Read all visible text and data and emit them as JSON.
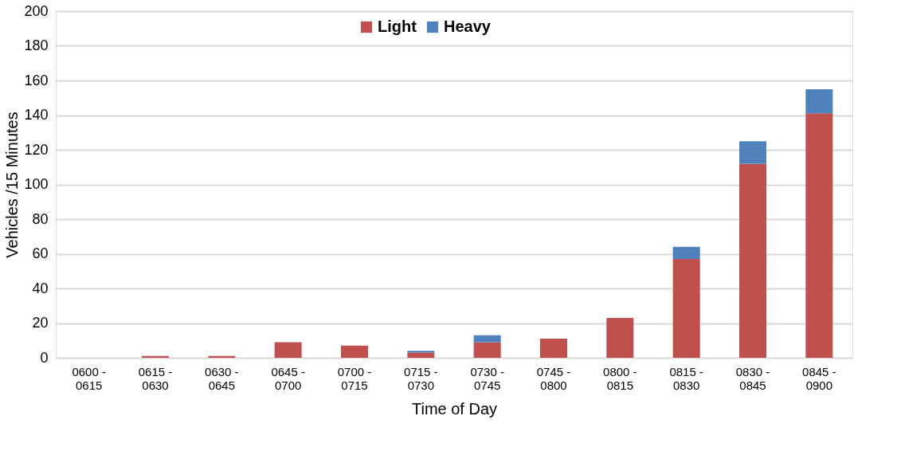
{
  "chart_data": {
    "type": "bar",
    "stacked": true,
    "xlabel": "Time of Day",
    "ylabel": "Vehicles /15 Minutes",
    "categories": [
      "0600 - 0615",
      "0615 - 0630",
      "0630 - 0645",
      "0645 - 0700",
      "0700 - 0715",
      "0715 - 0730",
      "0730 - 0745",
      "0745 - 0800",
      "0800 - 0815",
      "0815 - 0830",
      "0830 - 0845",
      "0845 - 0900"
    ],
    "series": [
      {
        "name": "Light",
        "color": "#c0504d",
        "values": [
          0,
          1,
          1,
          9,
          7,
          3,
          9,
          11,
          23,
          57,
          112,
          141
        ]
      },
      {
        "name": "Heavy",
        "color": "#4f81bd",
        "values": [
          0,
          0,
          0,
          0,
          0,
          1,
          4,
          0,
          0,
          7,
          13,
          14
        ]
      }
    ],
    "ylim": [
      0,
      200
    ],
    "yticks": [
      0,
      20,
      40,
      60,
      80,
      100,
      120,
      140,
      160,
      180,
      200
    ],
    "grid": "y",
    "legend": "top"
  }
}
